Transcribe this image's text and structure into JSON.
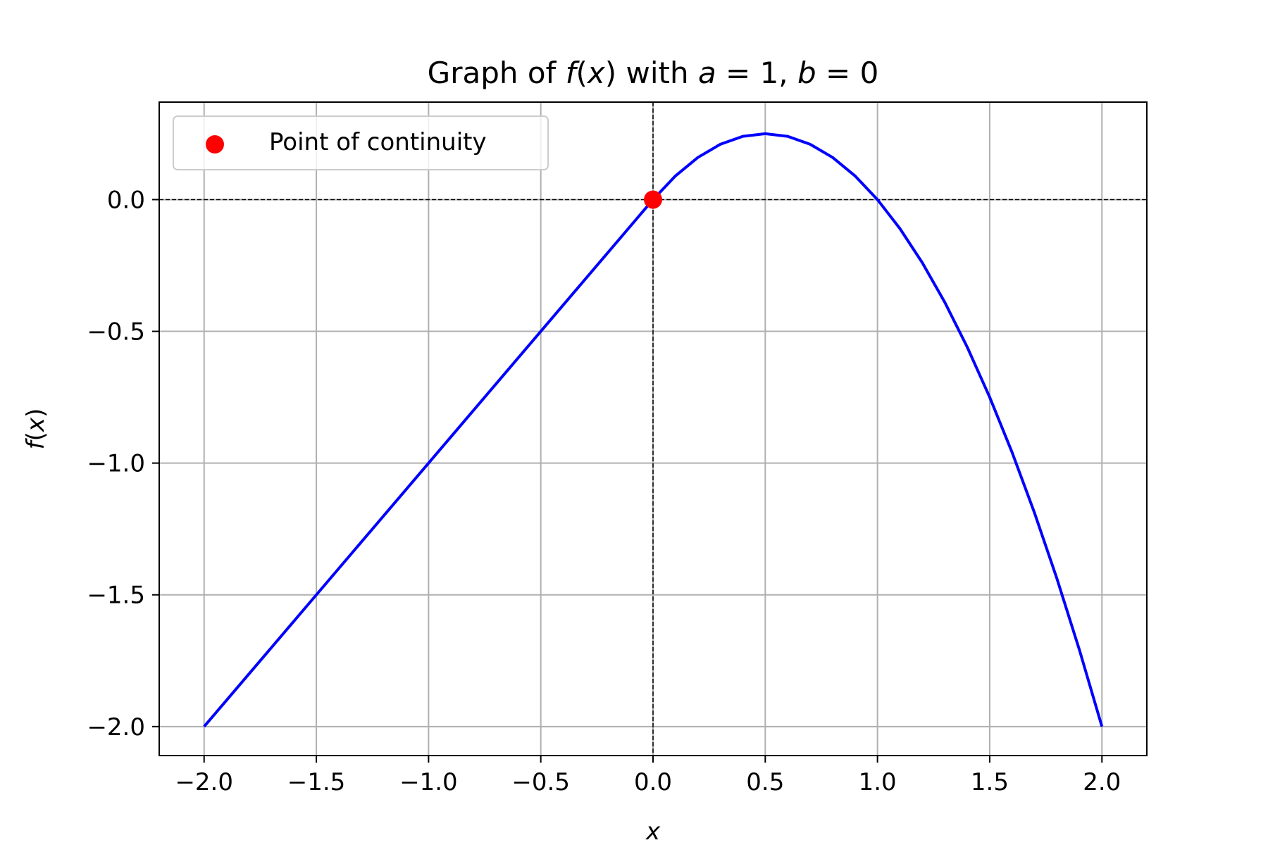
{
  "chart_data": {
    "type": "line",
    "title": "Graph of f(x) with a = 1, b = 0",
    "title_parts": [
      "Graph of ",
      "f",
      "(",
      "x",
      ") with ",
      "a",
      " = 1, ",
      "b",
      " = 0"
    ],
    "xlabel": "x",
    "ylabel_parts": [
      "f",
      "(",
      "x",
      ")"
    ],
    "xlim": [
      -2.2,
      2.2
    ],
    "ylim": [
      -2.11,
      0.37
    ],
    "grid": true,
    "x_ticks": [
      -2.0,
      -1.5,
      -1.0,
      -0.5,
      0.0,
      0.5,
      1.0,
      1.5,
      2.0
    ],
    "x_tick_labels": [
      "−2.0",
      "−1.5",
      "−1.0",
      "−0.5",
      "0.0",
      "0.5",
      "1.0",
      "1.5",
      "2.0"
    ],
    "y_ticks": [
      0.0,
      -0.5,
      -1.0,
      -1.5,
      -2.0
    ],
    "y_tick_labels": [
      "0.0",
      "−0.5",
      "−1.0",
      "−1.5",
      "−2.0"
    ],
    "reference_lines": [
      {
        "orientation": "horizontal",
        "value": 0.0,
        "style": "dashed",
        "color": "#000000"
      },
      {
        "orientation": "vertical",
        "value": 0.0,
        "style": "dashed",
        "color": "#000000"
      }
    ],
    "series": [
      {
        "kind": "line",
        "color": "#0000ff",
        "x": [
          -2.0,
          -1.5,
          -1.0,
          -0.5,
          0.0,
          0.1,
          0.2,
          0.3,
          0.4,
          0.5,
          0.6,
          0.7,
          0.8,
          0.9,
          1.0,
          1.1,
          1.2,
          1.3,
          1.4,
          1.5,
          1.6,
          1.7,
          1.8,
          1.9,
          2.0
        ],
        "y": [
          -2.0,
          -1.5,
          -1.0,
          -0.5,
          0.0,
          0.09,
          0.16,
          0.21,
          0.24,
          0.25,
          0.24,
          0.21,
          0.16,
          0.09,
          0.0,
          -0.11,
          -0.24,
          -0.39,
          -0.56,
          -0.75,
          -0.96,
          -1.19,
          -1.44,
          -1.71,
          -2.0
        ]
      },
      {
        "kind": "scatter",
        "name": "Point of continuity",
        "color": "#ff0000",
        "x": [
          0.0
        ],
        "y": [
          0.0
        ]
      }
    ],
    "legend": {
      "position": "top-left",
      "entries": [
        "Point of continuity"
      ]
    }
  }
}
